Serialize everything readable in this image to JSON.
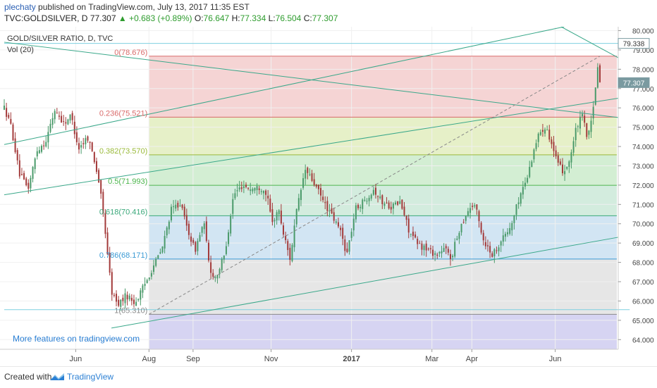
{
  "header": {
    "author": "plechaty",
    "published": "published on TradingView.com, July 13, 2017 11:35 EST",
    "symbol": "TVC:GOLDSILVER, D",
    "last": "77.307",
    "change": "+0.683 (+0.89%)",
    "open_label": "O:",
    "open": "76.647",
    "high_label": "H:",
    "high": "77.334",
    "low_label": "L:",
    "low": "76.504",
    "close_label": "C:",
    "close": "77.307"
  },
  "footer": {
    "created_with": "Created with",
    "brand": "TradingView"
  },
  "colors": {
    "up": "#4a9a6a",
    "down": "#a33a3a",
    "trend": "#3aa88a",
    "accent": "#2a7fd4"
  },
  "chart_data": {
    "type": "candlestick",
    "title": "GOLD/SILVER RATIO, D, TVC",
    "volume_label": "Vol (20)",
    "watermark": "More features on tradingview.com",
    "ylim": [
      63.5,
      80.2
    ],
    "y_ticks": [
      "64.000",
      "65.000",
      "66.000",
      "67.000",
      "68.000",
      "69.000",
      "70.000",
      "71.000",
      "72.000",
      "73.000",
      "74.000",
      "75.000",
      "76.000",
      "77.000",
      "78.000",
      "79.000",
      "80.000"
    ],
    "x_labels": [
      {
        "label": "Jun",
        "t": 0.12
      },
      {
        "label": "Aug",
        "t": 0.243
      },
      {
        "label": "Sep",
        "t": 0.317
      },
      {
        "label": "Nov",
        "t": 0.448
      },
      {
        "label": "2017",
        "t": 0.583
      },
      {
        "label": "Mar",
        "t": 0.718
      },
      {
        "label": "Apr",
        "t": 0.785
      },
      {
        "label": "Jun",
        "t": 0.925
      }
    ],
    "price_labels": [
      {
        "value": 79.338,
        "text": "79.338",
        "style": "outline"
      },
      {
        "value": 77.307,
        "text": "77.307",
        "style": "fill"
      }
    ],
    "fib": {
      "t_start": 0.243,
      "levels": [
        {
          "label": "0(78.676)",
          "value": 78.676,
          "color": "#d96a6a"
        },
        {
          "label": "0.236(75.521)",
          "value": 75.521,
          "color": "#d96a6a"
        },
        {
          "label": "0.382(73.570)",
          "value": 73.57,
          "color": "#9aba3a"
        },
        {
          "label": "0.5(71.993)",
          "value": 71.993,
          "color": "#4ab44a"
        },
        {
          "label": "0.618(70.416)",
          "value": 70.416,
          "color": "#3aa87a"
        },
        {
          "label": "0.786(68.171)",
          "value": 68.171,
          "color": "#3a9ad4"
        },
        {
          "label": "1(65.310)",
          "value": 65.31,
          "color": "#8a8a8a"
        }
      ],
      "bands": [
        "#f5d4d4",
        "#e6f0c8",
        "#d3eed3",
        "#d3ecde",
        "#d2e5f3",
        "#e6e6e6",
        "#d6d4f2"
      ]
    },
    "points": [
      {
        "t": 0.0,
        "v": 76.0
      },
      {
        "t": 0.012,
        "v": 75.0
      },
      {
        "t": 0.025,
        "v": 72.6
      },
      {
        "t": 0.04,
        "v": 71.8
      },
      {
        "t": 0.055,
        "v": 73.8
      },
      {
        "t": 0.07,
        "v": 74.3
      },
      {
        "t": 0.085,
        "v": 75.9
      },
      {
        "t": 0.1,
        "v": 75.2
      },
      {
        "t": 0.112,
        "v": 75.6
      },
      {
        "t": 0.125,
        "v": 73.9
      },
      {
        "t": 0.14,
        "v": 74.5
      },
      {
        "t": 0.15,
        "v": 73.5
      },
      {
        "t": 0.16,
        "v": 72.0
      },
      {
        "t": 0.17,
        "v": 69.5
      },
      {
        "t": 0.18,
        "v": 66.5
      },
      {
        "t": 0.19,
        "v": 65.8
      },
      {
        "t": 0.205,
        "v": 66.3
      },
      {
        "t": 0.22,
        "v": 65.9
      },
      {
        "t": 0.235,
        "v": 66.8
      },
      {
        "t": 0.25,
        "v": 67.8
      },
      {
        "t": 0.265,
        "v": 68.7
      },
      {
        "t": 0.28,
        "v": 70.7
      },
      {
        "t": 0.295,
        "v": 71.1
      },
      {
        "t": 0.305,
        "v": 70.0
      },
      {
        "t": 0.32,
        "v": 68.6
      },
      {
        "t": 0.335,
        "v": 70.1
      },
      {
        "t": 0.345,
        "v": 67.6
      },
      {
        "t": 0.355,
        "v": 67.2
      },
      {
        "t": 0.37,
        "v": 68.4
      },
      {
        "t": 0.385,
        "v": 71.5
      },
      {
        "t": 0.4,
        "v": 72.0
      },
      {
        "t": 0.415,
        "v": 71.8
      },
      {
        "t": 0.43,
        "v": 71.9
      },
      {
        "t": 0.44,
        "v": 71.6
      },
      {
        "t": 0.45,
        "v": 70.0
      },
      {
        "t": 0.46,
        "v": 70.8
      },
      {
        "t": 0.47,
        "v": 69.3
      },
      {
        "t": 0.48,
        "v": 68.2
      },
      {
        "t": 0.49,
        "v": 70.5
      },
      {
        "t": 0.505,
        "v": 72.8
      },
      {
        "t": 0.52,
        "v": 72.1
      },
      {
        "t": 0.535,
        "v": 71.2
      },
      {
        "t": 0.55,
        "v": 70.4
      },
      {
        "t": 0.565,
        "v": 69.6
      },
      {
        "t": 0.575,
        "v": 68.4
      },
      {
        "t": 0.59,
        "v": 70.8
      },
      {
        "t": 0.605,
        "v": 71.2
      },
      {
        "t": 0.62,
        "v": 71.8
      },
      {
        "t": 0.635,
        "v": 71.1
      },
      {
        "t": 0.65,
        "v": 70.9
      },
      {
        "t": 0.665,
        "v": 71.1
      },
      {
        "t": 0.68,
        "v": 69.6
      },
      {
        "t": 0.695,
        "v": 68.9
      },
      {
        "t": 0.71,
        "v": 68.7
      },
      {
        "t": 0.725,
        "v": 68.4
      },
      {
        "t": 0.74,
        "v": 68.7
      },
      {
        "t": 0.75,
        "v": 68.2
      },
      {
        "t": 0.765,
        "v": 69.8
      },
      {
        "t": 0.78,
        "v": 70.8
      },
      {
        "t": 0.79,
        "v": 71.0
      },
      {
        "t": 0.805,
        "v": 69.1
      },
      {
        "t": 0.82,
        "v": 68.4
      },
      {
        "t": 0.835,
        "v": 69.2
      },
      {
        "t": 0.85,
        "v": 69.8
      },
      {
        "t": 0.865,
        "v": 71.4
      },
      {
        "t": 0.88,
        "v": 72.6
      },
      {
        "t": 0.89,
        "v": 74.0
      },
      {
        "t": 0.9,
        "v": 74.8
      },
      {
        "t": 0.91,
        "v": 75.1
      },
      {
        "t": 0.92,
        "v": 74.0
      },
      {
        "t": 0.93,
        "v": 73.0
      },
      {
        "t": 0.94,
        "v": 72.7
      },
      {
        "t": 0.95,
        "v": 73.4
      },
      {
        "t": 0.96,
        "v": 74.9
      },
      {
        "t": 0.97,
        "v": 75.6
      },
      {
        "t": 0.98,
        "v": 74.4
      },
      {
        "t": 0.99,
        "v": 76.1
      },
      {
        "t": 0.996,
        "v": 78.3
      },
      {
        "t": 1.0,
        "v": 77.3
      }
    ],
    "trendlines": [
      {
        "t1": 0.0,
        "v1": 71.5,
        "t2": 1.07,
        "v2": 76.5,
        "color": "#3aa88a"
      },
      {
        "t1": 0.0,
        "v1": 74.1,
        "t2": 0.94,
        "v2": 80.2,
        "color": "#3aa88a"
      },
      {
        "t1": 0.0,
        "v1": 79.4,
        "t2": 1.07,
        "v2": 75.5,
        "color": "#3aa88a"
      },
      {
        "t1": 0.18,
        "v1": 64.6,
        "t2": 1.07,
        "v2": 69.3,
        "color": "#3aa88a"
      },
      {
        "t1": 0.935,
        "v1": 80.2,
        "t2": 1.07,
        "v2": 78.6,
        "color": "#3aa88a"
      }
    ],
    "hlines": [
      {
        "value": 79.338,
        "t1": 0.0,
        "t2": 1.07,
        "color": "#7fd0e0"
      },
      {
        "value": 65.55,
        "t1": 0.0,
        "t2": 1.05,
        "color": "#7fd0e0"
      }
    ],
    "fib_diagonal": {
      "t1": 0.243,
      "v1": 65.31,
      "t2": 1.0,
      "v2": 78.676
    }
  }
}
